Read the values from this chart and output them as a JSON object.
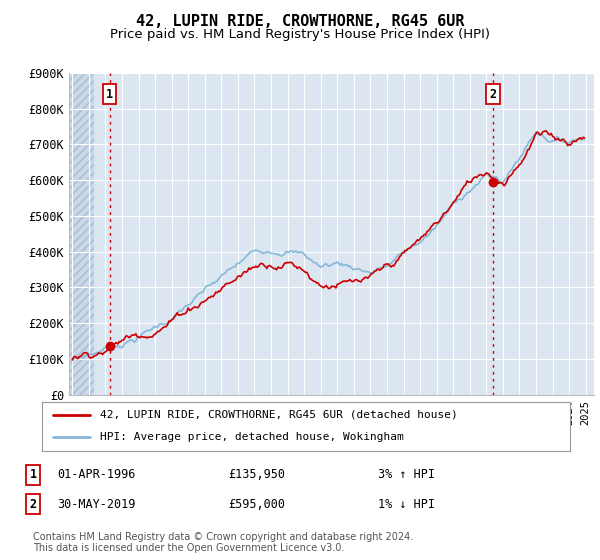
{
  "title": "42, LUPIN RIDE, CROWTHORNE, RG45 6UR",
  "subtitle": "Price paid vs. HM Land Registry's House Price Index (HPI)",
  "ylim": [
    0,
    900000
  ],
  "yticks": [
    0,
    100000,
    200000,
    300000,
    400000,
    500000,
    600000,
    700000,
    800000,
    900000
  ],
  "ytick_labels": [
    "£0",
    "£100K",
    "£200K",
    "£300K",
    "£400K",
    "£500K",
    "£600K",
    "£700K",
    "£800K",
    "£900K"
  ],
  "background_color": "#ffffff",
  "plot_bg_color": "#dce6f1",
  "grid_color": "#ffffff",
  "hatch_color": "#c8d8e8",
  "line_color_red": "#cc0000",
  "line_color_blue": "#88b8d8",
  "point1_x": 1996.25,
  "point1_y": 135950,
  "point2_x": 2019.42,
  "point2_y": 595000,
  "xlim_left": 1993.8,
  "xlim_right": 2025.5,
  "hatch_end": 1995.3,
  "legend_line1": "42, LUPIN RIDE, CROWTHORNE, RG45 6UR (detached house)",
  "legend_line2": "HPI: Average price, detached house, Wokingham",
  "footer": "Contains HM Land Registry data © Crown copyright and database right 2024.\nThis data is licensed under the Open Government Licence v3.0.",
  "title_fontsize": 11,
  "subtitle_fontsize": 9.5
}
